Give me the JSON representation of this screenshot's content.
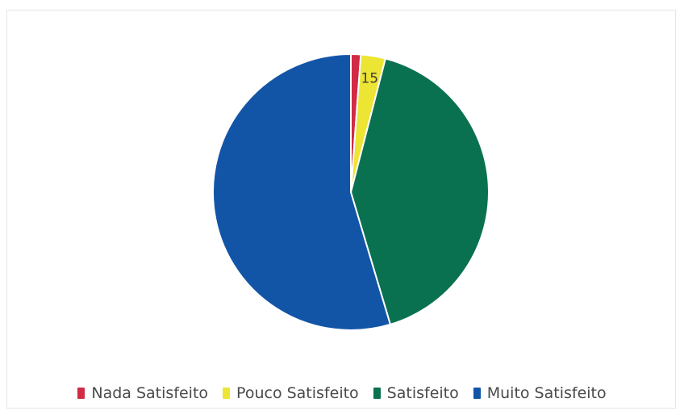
{
  "chart_data": {
    "type": "pie",
    "title": "",
    "categories": [
      "Nada Satisfeito",
      "Pouco Satisfeito",
      "Satisfeito",
      "Muito Satisfeito"
    ],
    "values": [
      6,
      15,
      215,
      284
    ],
    "colors": [
      "#d12b45",
      "#ece534",
      "#0a7150",
      "#1255a7"
    ],
    "labels": [
      {
        "category": "Pouco Satisfeito",
        "text": "15"
      }
    ],
    "legend_position": "bottom",
    "start_angle_deg": 0,
    "direction": "clockwise"
  }
}
